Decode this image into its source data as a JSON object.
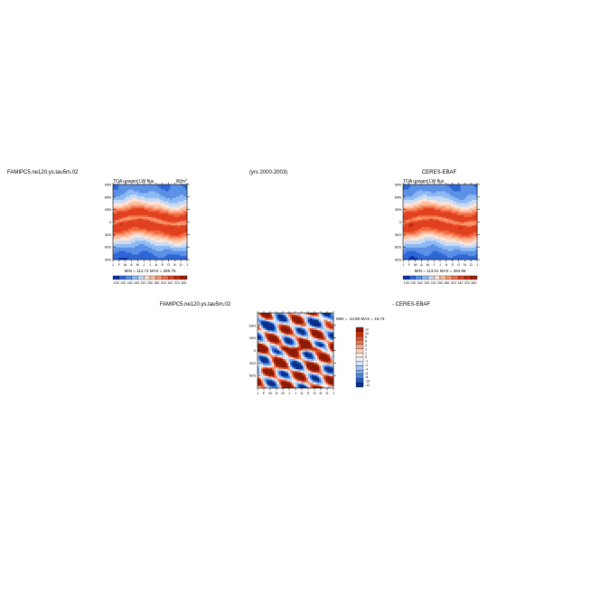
{
  "header": {
    "left_case": "FAMIPC5.ne120.ys.tau5m.02",
    "years": "(yrs 2000-2003)",
    "right_case": "CERES-EBAF"
  },
  "panels": {
    "left": {
      "title": "TOA upward LW flux",
      "units": "W/m",
      "units_sup": "2",
      "stats": "MIN = 114.74  MAX = 285.75"
    },
    "right": {
      "title": "TOA upward LW flux",
      "stats": "MIN = 113.51  MAX = 284.86"
    },
    "diff": {
      "title_left": "FAMIPC5.ne120.ys.tau5m.02",
      "title_right": "- CERES-EBAF",
      "stats": "MIN = -13.80  MAX =  15.74"
    }
  },
  "colors": {
    "seq": [
      "#0a2fb0",
      "#2e66d6",
      "#5a90e6",
      "#8fb9f2",
      "#c4dbf8",
      "#fde3d6",
      "#fcc0a4",
      "#f9966e",
      "#f26a3e",
      "#e0401f",
      "#c02a10",
      "#9a1e0a"
    ],
    "div": [
      "#08308a",
      "#1e5bc8",
      "#4a86e0",
      "#7aa8ee",
      "#a8c6f4",
      "#d2e2f8",
      "#eef3fb",
      "#fdf0ea",
      "#f9d0bd",
      "#f4a888",
      "#eb7a56",
      "#dc4d2a",
      "#c3310e",
      "#8e1a05"
    ]
  },
  "chart_data": [
    {
      "type": "heatmap",
      "name": "model",
      "x_ticks": [
        "J",
        "F",
        "M",
        "A",
        "M",
        "J",
        "J",
        "A",
        "S",
        "O",
        "N",
        "D",
        "J"
      ],
      "y_ticks": [
        "90N",
        "60N",
        "30N",
        "0",
        "30S",
        "60S",
        "90S"
      ],
      "y_range": [
        -90,
        90
      ],
      "colorbar": {
        "levels": [
          "100",
          "130",
          "160",
          "190",
          "220",
          "250",
          "280",
          "310",
          "340",
          "370",
          "390"
        ]
      },
      "min": 114.74,
      "max": 285.75
    },
    {
      "type": "heatmap",
      "name": "obs",
      "x_ticks": [
        "J",
        "F",
        "M",
        "A",
        "M",
        "J",
        "J",
        "A",
        "S",
        "O",
        "N",
        "D",
        "J"
      ],
      "y_ticks": [
        "90N",
        "60N",
        "30N",
        "0",
        "30S",
        "60S",
        "90S"
      ],
      "y_range": [
        -90,
        90
      ],
      "colorbar": {
        "levels": [
          "100",
          "130",
          "160",
          "190",
          "220",
          "250",
          "280",
          "310",
          "340",
          "370",
          "390"
        ]
      },
      "min": 113.51,
      "max": 284.86
    },
    {
      "type": "heatmap",
      "name": "difference",
      "x_ticks": [
        "J",
        "F",
        "M",
        "A",
        "M",
        "J",
        "J",
        "A",
        "S",
        "O",
        "N",
        "D",
        "J"
      ],
      "y_ticks": [
        "60N",
        "30N",
        "0",
        "30S",
        "60S"
      ],
      "y_range": [
        -90,
        90
      ],
      "colorbar": {
        "levels": [
          "12",
          "10",
          "8",
          "6",
          "4",
          "2",
          "1",
          "0",
          "-1",
          "-2",
          "-4",
          "-6",
          "-8",
          "-10",
          "-12"
        ]
      },
      "min": -13.8,
      "max": 15.74
    }
  ]
}
